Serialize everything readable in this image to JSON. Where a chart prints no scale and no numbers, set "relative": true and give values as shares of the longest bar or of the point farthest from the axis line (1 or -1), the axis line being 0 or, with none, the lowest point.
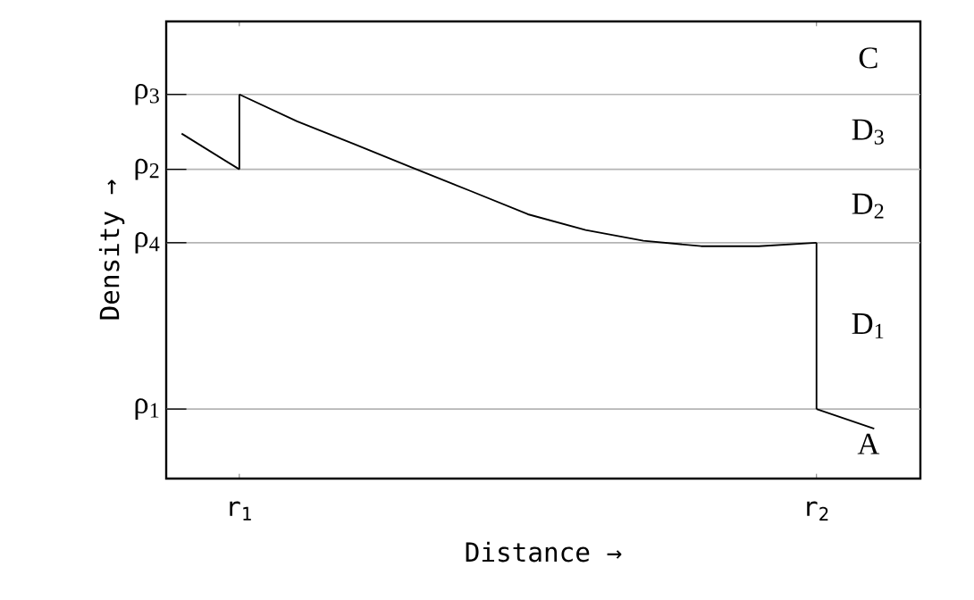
{
  "chart_data": {
    "type": "line",
    "relative": true,
    "xlabel": "Distance →",
    "ylabel": "Density →",
    "grid": false,
    "marker": "none",
    "line_style": "solid",
    "categories": [
      null,
      "r$_{1}$",
      null,
      null,
      null,
      null,
      null,
      null,
      null,
      null,
      null,
      "r$_{2}$",
      null
    ],
    "series": [
      {
        "color": "#000000",
        "values": [
          0.898,
          0.805,
          null,
          null,
          null,
          null,
          null,
          null,
          null,
          null,
          null,
          null,
          null
        ]
      },
      {
        "color": "#000000",
        "values": [
          null,
          1,
          0.93,
          0.87,
          0.809,
          0.749,
          0.688,
          0.647,
          0.619,
          0.605,
          0.605,
          0.614,
          null
        ]
      },
      {
        "color": "#000000",
        "values": [
          null,
          null,
          null,
          null,
          null,
          null,
          null,
          null,
          null,
          null,
          null,
          0.181,
          0.13
        ]
      },
      {
        "color": "#000000",
        "x": [
          "r$_{1}$",
          "r$_{1}$"
        ],
        "values": [
          0.805,
          1
        ]
      },
      {
        "color": "#000000",
        "x": [
          "r$_{2}$",
          "r$_{2}$"
        ],
        "values": [
          0.614,
          0.181
        ]
      }
    ],
    "ref_lines": [
      {
        "axis": "y",
        "value": 1,
        "label": "ρ$_{3}$",
        "color": "#b4b4b4"
      },
      {
        "axis": "y",
        "value": 0.805,
        "label": "ρ$_{2}$",
        "color": "#b4b4b4"
      },
      {
        "axis": "y",
        "value": 0.614,
        "label": "ρ$_{4}$",
        "color": "#b4b4b4"
      },
      {
        "axis": "y",
        "value": 0.181,
        "label": "ρ$_{1}$",
        "color": "#b4b4b4"
      }
    ],
    "annotations": [
      "C",
      "D$_{3}$",
      "D$_{2}$",
      "D$_{1}$",
      "A"
    ]
  }
}
